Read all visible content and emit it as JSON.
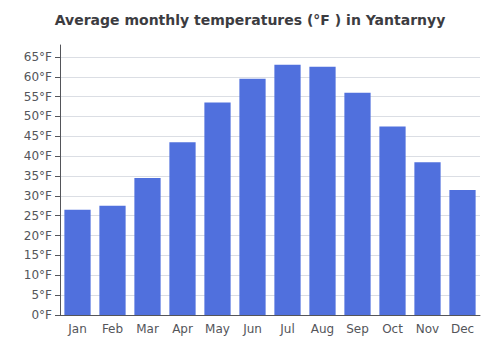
{
  "chart_data": {
    "type": "bar",
    "title": "Average monthly temperatures (°F ) in Yantarnyy",
    "categories": [
      "Jan",
      "Feb",
      "Mar",
      "Apr",
      "May",
      "Jun",
      "Jul",
      "Aug",
      "Sep",
      "Oct",
      "Nov",
      "Dec"
    ],
    "values": [
      26.5,
      27.5,
      34.5,
      43.5,
      53.5,
      59.5,
      63.0,
      62.5,
      56.0,
      47.5,
      38.5,
      31.5
    ],
    "ylim": [
      0,
      68
    ],
    "yticks": [
      {
        "value": 0,
        "label": "0°F"
      },
      {
        "value": 5,
        "label": "5°F"
      },
      {
        "value": 10,
        "label": "10°F"
      },
      {
        "value": 15,
        "label": "15°F"
      },
      {
        "value": 20,
        "label": "20°F"
      },
      {
        "value": 25,
        "label": "25°F"
      },
      {
        "value": 30,
        "label": "30°F"
      },
      {
        "value": 35,
        "label": "35°F"
      },
      {
        "value": 40,
        "label": "40°F"
      },
      {
        "value": 45,
        "label": "45°F"
      },
      {
        "value": 50,
        "label": "50°F"
      },
      {
        "value": 55,
        "label": "55°F"
      },
      {
        "value": 60,
        "label": "60°F"
      },
      {
        "value": 65,
        "label": "65°F"
      }
    ],
    "grid": true
  }
}
